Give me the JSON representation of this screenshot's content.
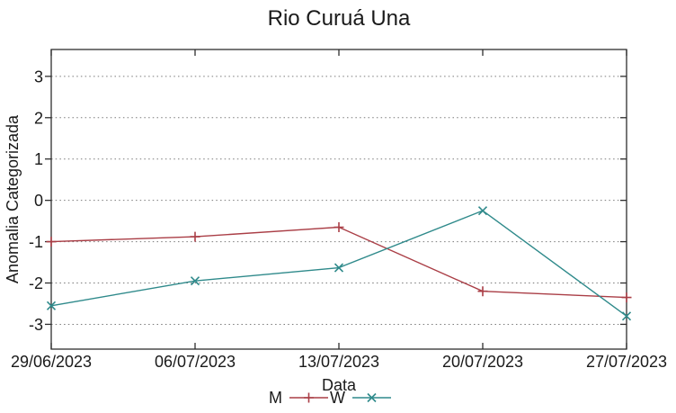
{
  "page": {
    "background": "#ffffff"
  },
  "chart_data": {
    "type": "line",
    "title": "Rio Curuá Una",
    "xlabel": "Data",
    "ylabel": "Anomalia Categorizada",
    "categories": [
      "29/06/2023",
      "06/07/2023",
      "13/07/2023",
      "20/07/2023",
      "27/07/2023"
    ],
    "series": [
      {
        "name": "M",
        "marker": "plus",
        "color": "#aa3e46",
        "values": [
          -1.0,
          -0.88,
          -0.65,
          -2.2,
          -2.35
        ]
      },
      {
        "name": "W",
        "marker": "cross",
        "color": "#2f8a8b",
        "values": [
          -2.55,
          -1.95,
          -1.63,
          -0.25,
          -2.8
        ]
      }
    ],
    "yticks": [
      3,
      2,
      1,
      0,
      -1,
      -2,
      -3
    ],
    "ylim": [
      -3.6,
      3.65
    ],
    "grid": {
      "horizontal": true,
      "style": "dotted",
      "color": "#7a7a7a"
    },
    "legend_position": "bottom-center",
    "axis_color": "#2e2e2e",
    "text_color": "#1a1a1a"
  }
}
